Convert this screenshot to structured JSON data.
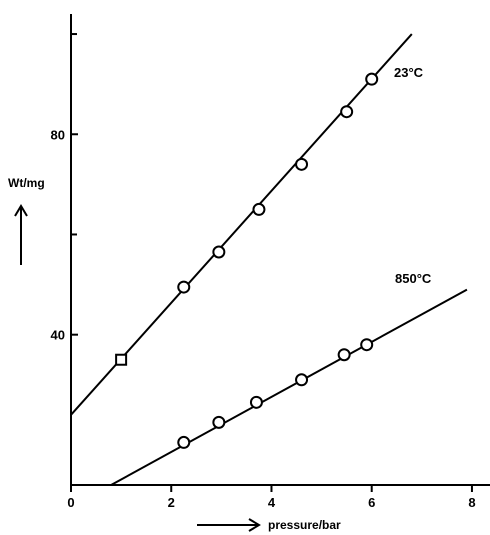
{
  "chart_data": {
    "type": "scatter",
    "xlabel": "pressure/bar",
    "ylabel": "Wt/mg",
    "xlim": [
      0,
      8.4
    ],
    "ylim": [
      10,
      104
    ],
    "x_ticks": [
      0,
      2,
      4,
      6,
      8
    ],
    "y_ticks": [
      40,
      80
    ],
    "grid": false,
    "legend": "none",
    "series": [
      {
        "name": "23°C",
        "marker": "circle",
        "points": [
          {
            "x": 1.0,
            "y": 35,
            "marker": "square"
          },
          {
            "x": 2.25,
            "y": 49.5
          },
          {
            "x": 2.95,
            "y": 56.5
          },
          {
            "x": 3.75,
            "y": 65
          },
          {
            "x": 4.6,
            "y": 74
          },
          {
            "x": 5.5,
            "y": 84.5
          },
          {
            "x": 6.0,
            "y": 91
          }
        ],
        "fit_line": {
          "x": [
            0,
            6.8
          ],
          "y": [
            24,
            100
          ]
        }
      },
      {
        "name": "850°C",
        "marker": "circle",
        "points": [
          {
            "x": 2.25,
            "y": 18.5
          },
          {
            "x": 2.95,
            "y": 22.5
          },
          {
            "x": 3.7,
            "y": 26.5
          },
          {
            "x": 4.6,
            "y": 31
          },
          {
            "x": 5.45,
            "y": 36
          },
          {
            "x": 5.9,
            "y": 38
          }
        ],
        "fit_line": {
          "x": [
            0.8,
            7.9
          ],
          "y": [
            10,
            49
          ]
        }
      }
    ]
  }
}
